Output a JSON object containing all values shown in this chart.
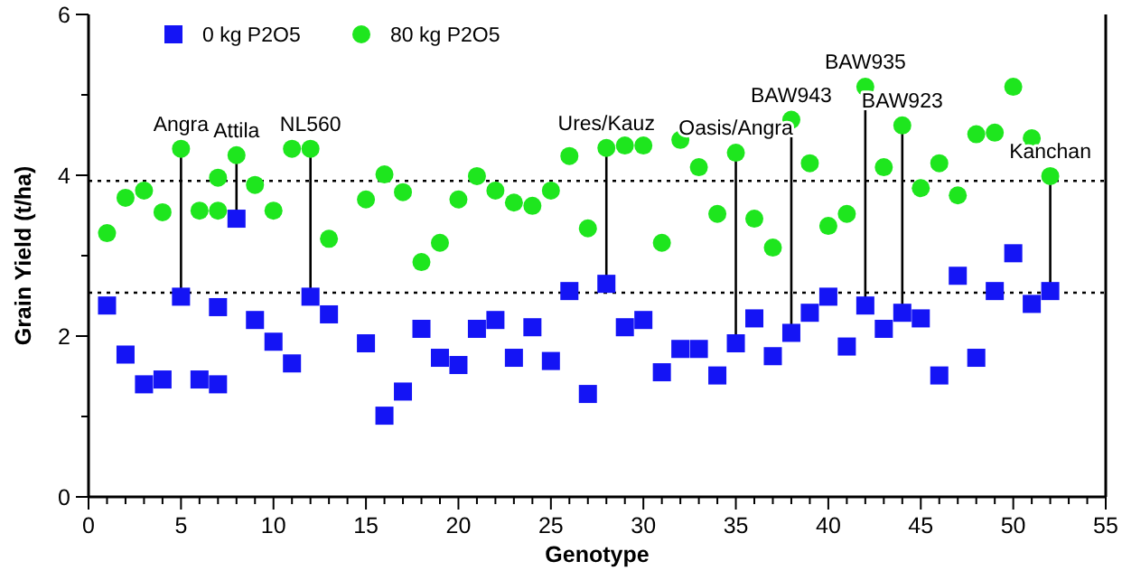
{
  "chart_data": {
    "type": "scatter",
    "xlabel": "Genotype",
    "ylabel": "Grain Yield (t/ha)",
    "legend": "top left",
    "xlim": [
      0,
      55
    ],
    "ylim": [
      0,
      6
    ],
    "xticks": [
      0,
      {
        "value": 1,
        "label": null
      },
      {
        "value": 2,
        "label": null
      },
      {
        "value": 3,
        "label": null
      },
      {
        "value": 4,
        "label": null
      },
      5,
      {
        "value": 6,
        "label": null
      },
      {
        "value": 7,
        "label": null
      },
      {
        "value": 8,
        "label": null
      },
      {
        "value": 9,
        "label": null
      },
      10,
      {
        "value": 11,
        "label": null
      },
      {
        "value": 12,
        "label": null
      },
      {
        "value": 13,
        "label": null
      },
      {
        "value": 14,
        "label": null
      },
      15,
      {
        "value": 16,
        "label": null
      },
      {
        "value": 17,
        "label": null
      },
      {
        "value": 18,
        "label": null
      },
      {
        "value": 19,
        "label": null
      },
      20,
      {
        "value": 21,
        "label": null
      },
      {
        "value": 22,
        "label": null
      },
      {
        "value": 23,
        "label": null
      },
      {
        "value": 24,
        "label": null
      },
      25,
      {
        "value": 26,
        "label": null
      },
      {
        "value": 27,
        "label": null
      },
      {
        "value": 28,
        "label": null
      },
      {
        "value": 29,
        "label": null
      },
      30,
      {
        "value": 31,
        "label": null
      },
      {
        "value": 32,
        "label": null
      },
      {
        "value": 33,
        "label": null
      },
      {
        "value": 34,
        "label": null
      },
      35,
      {
        "value": 36,
        "label": null
      },
      {
        "value": 37,
        "label": null
      },
      {
        "value": 38,
        "label": null
      },
      {
        "value": 39,
        "label": null
      },
      40,
      {
        "value": 41,
        "label": null
      },
      {
        "value": 42,
        "label": null
      },
      {
        "value": 43,
        "label": null
      },
      {
        "value": 44,
        "label": null
      },
      45,
      {
        "value": 46,
        "label": null
      },
      {
        "value": 47,
        "label": null
      },
      {
        "value": 48,
        "label": null
      },
      {
        "value": 49,
        "label": null
      },
      50,
      {
        "value": 51,
        "label": null
      },
      {
        "value": 52,
        "label": null
      },
      {
        "value": 53,
        "label": null
      },
      {
        "value": 54,
        "label": null
      },
      55
    ],
    "yticks": [
      0,
      {
        "value": 1,
        "label": null
      },
      2,
      {
        "value": 3,
        "label": null
      },
      4,
      {
        "value": 5,
        "label": null
      },
      6
    ],
    "series": [
      {
        "name": "0 kg P2O5",
        "color": "#1414f5",
        "marker": "square",
        "x": [
          1,
          2,
          3,
          4,
          5,
          6,
          7,
          7,
          8,
          9,
          10,
          11,
          12,
          13,
          15,
          16,
          17,
          18,
          19,
          20,
          21,
          22,
          23,
          24,
          25,
          26,
          27,
          28,
          29,
          30,
          31,
          32,
          33,
          34,
          35,
          36,
          37,
          38,
          39,
          40,
          41,
          42,
          43,
          44,
          45,
          46,
          47,
          48,
          49,
          50,
          51,
          52
        ],
        "values": [
          2.38,
          1.77,
          1.4,
          1.46,
          2.49,
          1.46,
          2.36,
          1.4,
          3.46,
          2.2,
          1.93,
          1.66,
          2.49,
          2.27,
          1.91,
          1.01,
          1.31,
          2.09,
          1.73,
          1.64,
          2.09,
          2.2,
          1.73,
          2.11,
          1.69,
          2.56,
          1.28,
          2.65,
          2.11,
          2.2,
          1.55,
          1.84,
          1.84,
          1.51,
          1.91,
          2.22,
          1.75,
          2.04,
          2.29,
          2.49,
          1.87,
          2.38,
          2.09,
          2.29,
          2.22,
          1.51,
          2.75,
          1.73,
          2.56,
          3.03,
          2.4,
          2.56
        ]
      },
      {
        "name": "80 kg P2O5",
        "color": "#1ee61e",
        "marker": "circle",
        "x": [
          1,
          2,
          3,
          4,
          5,
          6,
          7,
          7,
          8,
          9,
          10,
          11,
          12,
          13,
          15,
          16,
          17,
          18,
          19,
          20,
          21,
          22,
          23,
          24,
          25,
          26,
          27,
          28,
          29,
          30,
          31,
          32,
          33,
          34,
          35,
          36,
          37,
          38,
          39,
          40,
          41,
          42,
          43,
          44,
          45,
          46,
          47,
          48,
          49,
          50,
          51,
          52
        ],
        "values": [
          3.28,
          3.72,
          3.81,
          3.54,
          4.33,
          3.56,
          3.97,
          3.56,
          4.25,
          3.88,
          3.56,
          4.33,
          4.33,
          3.21,
          3.7,
          4.01,
          3.79,
          2.92,
          3.16,
          3.7,
          3.99,
          3.81,
          3.66,
          3.62,
          3.81,
          4.24,
          3.34,
          4.34,
          4.37,
          4.37,
          3.16,
          4.44,
          4.1,
          3.52,
          4.28,
          3.46,
          3.1,
          4.69,
          4.15,
          3.37,
          3.52,
          5.1,
          4.1,
          4.62,
          3.84,
          4.15,
          3.75,
          4.51,
          4.53,
          5.1,
          4.46,
          3.99
        ]
      }
    ],
    "ref_lines": [
      {
        "axis": "y",
        "value": 3.93,
        "line_style": "dotted",
        "color": "#000000"
      },
      {
        "axis": "y",
        "value": 2.54,
        "line_style": "dotted",
        "color": "#000000"
      }
    ],
    "annotations": [
      {
        "text": "Angra",
        "x": 5,
        "y": 4.33
      },
      {
        "text": "Attila",
        "x": 8,
        "y": 4.25
      },
      {
        "text": "NL560",
        "x": 12,
        "y": 4.33
      },
      {
        "text": "Ures/Kauz",
        "x": 28,
        "y": 4.34
      },
      {
        "text": "Oasis/Angra",
        "x": 35,
        "y": 4.28
      },
      {
        "text": "BAW943",
        "x": 38,
        "y": 4.69
      },
      {
        "text": "BAW935",
        "x": 42,
        "y": 5.1
      },
      {
        "text": "BAW923",
        "x": 44,
        "y": 4.62
      },
      {
        "text": "Kanchan",
        "x": 52,
        "y": 3.99
      }
    ]
  }
}
